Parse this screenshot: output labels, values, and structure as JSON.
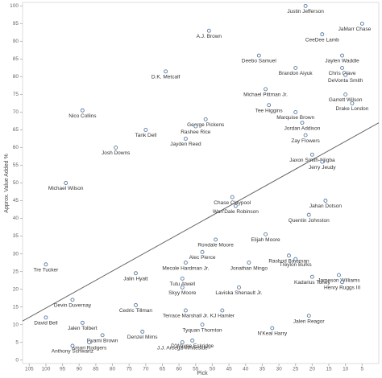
{
  "chart_data": {
    "type": "scatter",
    "x_label": "Pick",
    "y_label": "Approx. Value Added %",
    "xlim": [
      107,
      0
    ],
    "ylim": [
      -1,
      101
    ],
    "xticks": [
      105,
      100,
      95,
      90,
      85,
      80,
      75,
      70,
      65,
      60,
      55,
      50,
      45,
      40,
      35,
      30,
      25,
      20,
      15,
      10,
      5
    ],
    "yticks": [
      0,
      5,
      10,
      15,
      20,
      25,
      30,
      35,
      40,
      45,
      50,
      55,
      60,
      65,
      70,
      75,
      80,
      85,
      90,
      95,
      100
    ],
    "color": "#5b7fa3",
    "trend_line": {
      "x": [
        107,
        0
      ],
      "y": [
        11,
        67
      ],
      "color": "#666666"
    },
    "labels": [
      "Justin Jefferson",
      "JaMarr Chase",
      "CeeDee Lamb",
      "A.J. Brown",
      "Deebo Samuel",
      "Jaylen Waddle",
      "Brandon Aiyuk",
      "Chris Olave",
      "D.K. Metcalf",
      "DeVonta Smith",
      "Michael Pittman Jr.",
      "Garrett Wilson",
      "Drake London",
      "Tee Higgins",
      "Nico Collins",
      "Marquise Brown",
      "George Pickens",
      "Jordan Addison",
      "Tank Dell",
      "Rashee Rice",
      "Zay Flowers",
      "Jayden Reed",
      "Josh Downs",
      "Jaxon Smith-Njigba",
      "Jerry Jeudy",
      "Michael Wilson",
      "Jahan Dotson",
      "Chase Claypool",
      "Wan'Dale Robinson",
      "Quentin Johnston",
      "Elijah Moore",
      "Rondale Moore",
      "Alec Pierce",
      "Rashod Bateman",
      "Treylon Burks",
      "Mecole Hardman Jr.",
      "Jonathan Mingo",
      "Tre Tucker",
      "Jalin Hyatt",
      "Jameson Williams",
      "Kadarius Toney",
      "Tutu Atwell",
      "Henry Ruggs III",
      "Laviska Shenault Jr.",
      "Skyy Moore",
      "Devin Duvernay",
      "Cedric Tillman",
      "Terrace Marshall Jr.",
      "KJ Hamler",
      "David Bell",
      "Jalen Reagor",
      "Jalen Tolbert",
      "Tyquan Thornton",
      "N'Keal Harry",
      "Dyami Brown",
      "Denzel Mims",
      "D'Wayne Eskridge",
      "Amari Rodgers",
      "J.J. Arcega-Whiteside",
      "Anthony Schwartz"
    ],
    "x": [
      22,
      5,
      17,
      51,
      36,
      11,
      25,
      11,
      64,
      10,
      34,
      10,
      8,
      33,
      89,
      25,
      52,
      23,
      70,
      55,
      22,
      58,
      79,
      20,
      17,
      94,
      16,
      44,
      43,
      21,
      34,
      49,
      53,
      27,
      25,
      58,
      39,
      100,
      73,
      12,
      20,
      59,
      11,
      42,
      59,
      92,
      73,
      58,
      47,
      100,
      21,
      89,
      53,
      32,
      83,
      71,
      56,
      87,
      59,
      92
    ],
    "values": [
      100,
      95,
      92,
      93,
      86,
      86,
      82.5,
      82.5,
      81.5,
      80.5,
      76.5,
      75,
      72.5,
      72,
      70.5,
      70,
      68,
      67,
      65,
      66,
      63.5,
      62.5,
      60,
      58,
      56,
      50,
      45,
      46,
      43.5,
      41,
      35.5,
      34,
      30.5,
      29.5,
      28.5,
      27.5,
      27.5,
      27,
      24.5,
      24,
      23.5,
      23,
      22,
      20.5,
      20.5,
      17,
      15.5,
      14,
      14,
      12,
      12.5,
      10.5,
      10,
      9,
      7,
      8,
      5.5,
      5,
      5,
      4
    ]
  }
}
